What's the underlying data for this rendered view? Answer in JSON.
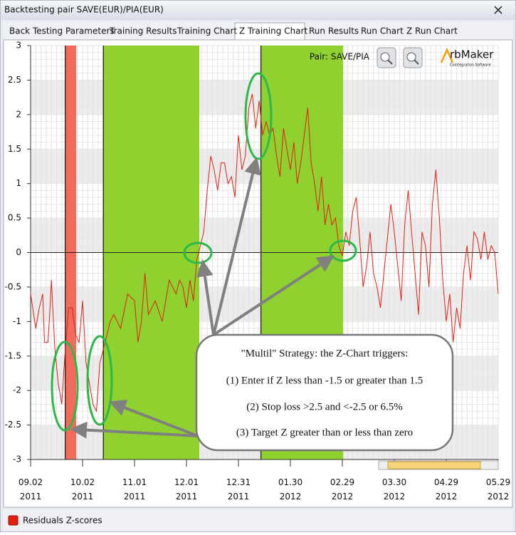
{
  "window": {
    "title": "Backtesting pair SAVE(EUR)/PIA(EUR)",
    "tabs": [
      "Back Testing Parameters",
      "Training Results",
      "Training Chart",
      "Z Training Chart",
      "Run Results",
      "Run Chart",
      "Z Run Chart"
    ],
    "active_tab": 3
  },
  "logo": {
    "name": "rbMaker",
    "tagline": "Cointegration Software"
  },
  "chart_data": {
    "type": "line",
    "pair_label": "Pair: SAVE/PIA",
    "series": [
      {
        "name": "Residuals Z-scores",
        "color": "#e02010",
        "x": [
          0,
          3,
          5,
          7,
          8,
          10,
          11,
          12,
          14,
          16,
          18,
          20,
          22,
          24,
          26,
          28,
          30,
          32,
          34,
          36,
          38,
          40,
          42,
          44,
          46,
          48,
          52,
          56,
          60,
          62,
          64,
          66,
          68,
          72,
          76,
          80,
          84,
          86,
          88,
          90,
          92,
          94,
          96,
          98,
          100,
          102,
          104,
          106,
          108,
          110,
          112,
          114,
          116,
          118,
          120,
          122,
          124,
          126,
          128,
          130,
          132,
          134,
          136,
          138,
          140,
          142,
          144,
          146,
          148,
          150,
          152,
          154,
          156,
          158,
          160,
          162,
          164,
          166,
          168,
          170,
          172,
          174,
          176,
          178,
          180,
          182,
          184,
          186,
          188,
          190,
          192,
          194,
          196,
          198,
          200,
          202,
          204,
          206,
          208,
          210,
          212,
          214,
          216,
          218,
          220,
          222,
          224,
          226,
          228,
          230,
          232,
          234,
          236,
          238,
          240,
          242,
          244,
          246,
          248,
          250,
          252,
          254,
          256,
          258,
          260,
          262,
          264,
          266,
          268,
          270
        ],
        "values": [
          -0.6,
          -1.1,
          -0.8,
          -0.6,
          -1.3,
          -1.3,
          -0.9,
          -0.4,
          -1.4,
          -1.9,
          -2.2,
          -1.4,
          -0.8,
          -0.8,
          -1.2,
          -1.3,
          -0.7,
          -1.6,
          -1.9,
          -2.2,
          -2.3,
          -1.6,
          -1.4,
          -1.2,
          -1.0,
          -0.9,
          -1.1,
          -0.6,
          -0.7,
          -1.3,
          -1.0,
          -0.3,
          -0.9,
          -0.7,
          -1.0,
          -0.4,
          -0.6,
          -0.4,
          -0.5,
          -0.8,
          -0.4,
          -0.7,
          -0.1,
          0.1,
          0.3,
          0.9,
          1.4,
          1.2,
          0.9,
          1.3,
          1.3,
          1.0,
          1.1,
          0.8,
          1.7,
          1.2,
          1.4,
          2.1,
          2.3,
          1.8,
          2.2,
          1.7,
          1.9,
          1.7,
          1.8,
          1.4,
          1.1,
          1.8,
          1.5,
          1.2,
          1.6,
          1.0,
          1.3,
          1.7,
          2.1,
          1.3,
          1.0,
          0.6,
          1.1,
          0.4,
          0.7,
          0.4,
          0.5,
          0.1,
          -0.05,
          0.3,
          0.1,
          0.6,
          0.8,
          0.2,
          -0.5,
          -0.2,
          0.3,
          -0.3,
          -0.5,
          -0.8,
          -0.3,
          0.2,
          0.7,
          0.3,
          -0.2,
          -0.7,
          0.4,
          0.9,
          0.3,
          -0.3,
          -0.9,
          0.3,
          0.1,
          -0.5,
          0.7,
          1.2,
          0.5,
          -0.4,
          -1.0,
          -0.6,
          -1.3,
          -0.8,
          -1.1,
          -0.3,
          0.1,
          -0.4,
          0.3,
          0.2,
          -0.1,
          0.3,
          -0.1,
          0.1,
          0.0,
          -0.6
        ]
      }
    ],
    "xlim": [
      0,
      270
    ],
    "xticks": [
      {
        "value": 0,
        "label": "09.02 2011"
      },
      {
        "value": 30,
        "label": "10.02 2011"
      },
      {
        "value": 60,
        "label": "11.01 2011"
      },
      {
        "value": 90,
        "label": "12.01 2011"
      },
      {
        "value": 120,
        "label": "12.31 2011"
      },
      {
        "value": 150,
        "label": "01.30 2012"
      },
      {
        "value": 180,
        "label": "02.29 2012"
      },
      {
        "value": 210,
        "label": "03.30 2012"
      },
      {
        "value": 240,
        "label": "04.29 2012"
      },
      {
        "value": 270,
        "label": "05.29 2012"
      }
    ],
    "ylim": [
      -3,
      3
    ],
    "yticks": [
      -3,
      -2.5,
      -2,
      -1.5,
      -1,
      -0.5,
      0,
      0.5,
      1,
      1.5,
      2,
      2.5,
      3
    ],
    "grid": true,
    "regions": [
      {
        "start": 20,
        "end": 26.3,
        "color": "#f26a5a"
      },
      {
        "start": 42,
        "end": 97.4,
        "color": "#8fd12e"
      },
      {
        "start": 133,
        "end": 180.5,
        "color": "#8fd12e"
      }
    ],
    "vlines": [
      20,
      42,
      133
    ],
    "annotation": {
      "lines": [
        "\"Multil\" Strategy: the Z-Chart triggers:",
        "(1) Enter if Z less than -1.5 or greater than 1.5",
        "(2) Stop loss >2.5 and <-2.5 or 6.5%",
        "(3) Target Z greater than or less than zero"
      ]
    }
  }
}
